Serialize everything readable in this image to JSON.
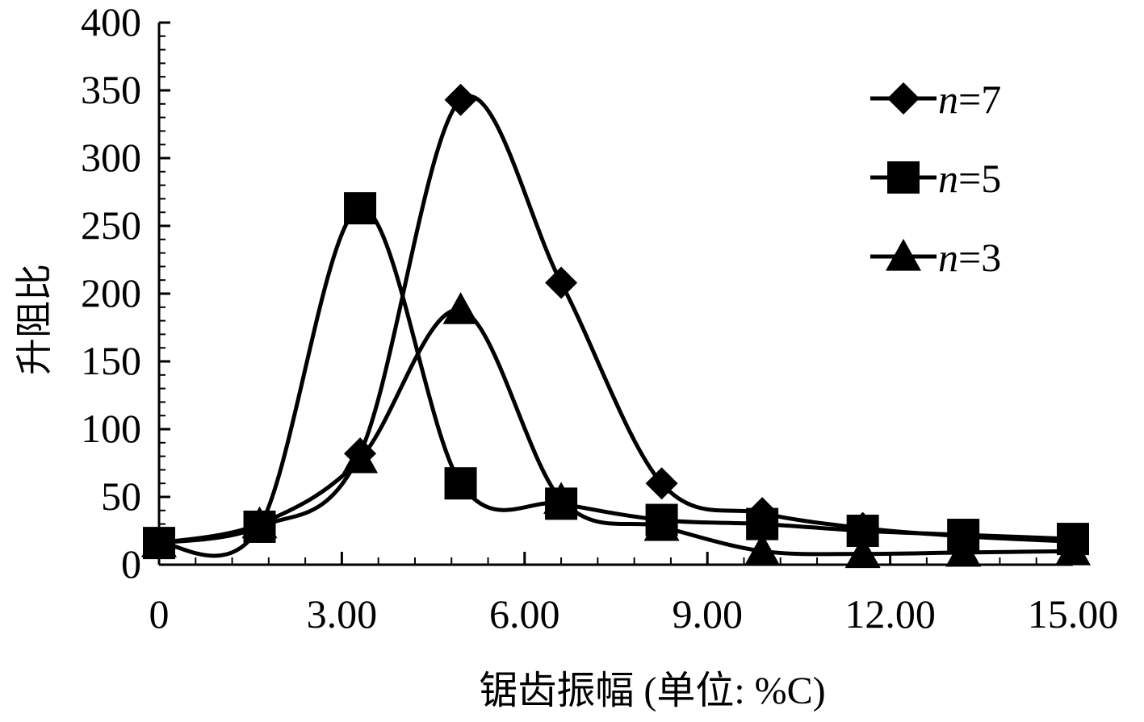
{
  "chart_data": {
    "type": "line",
    "title": "",
    "xlabel": "锯齿振幅 (单位: %C)",
    "ylabel": "升阻比",
    "xlim": [
      0,
      15
    ],
    "ylim": [
      0,
      400
    ],
    "x_ticks": [
      0,
      3,
      6,
      9,
      12,
      15
    ],
    "x_tick_labels": [
      "0",
      "3.00",
      "6.00",
      "9.00",
      "12.00",
      "15.00"
    ],
    "y_ticks": [
      0,
      50,
      100,
      150,
      200,
      250,
      300,
      350,
      400
    ],
    "y_tick_labels": [
      "0",
      "50",
      "100",
      "150",
      "200",
      "250",
      "300",
      "350",
      "400"
    ],
    "grid": false,
    "legend": "top-right",
    "series": [
      {
        "name": "n=7",
        "name_var": "n",
        "name_rest": "=7",
        "marker": "diamond",
        "x": [
          0,
          1.65,
          3.3,
          4.95,
          6.6,
          8.25,
          9.9,
          11.55,
          13.2,
          15.0
        ],
        "y": [
          16,
          28,
          82,
          343,
          208,
          60,
          38,
          27,
          21,
          17
        ]
      },
      {
        "name": "n=5",
        "name_var": "n",
        "name_rest": "=5",
        "marker": "square",
        "x": [
          0,
          1.65,
          3.3,
          4.95,
          6.6,
          8.25,
          9.9,
          11.55,
          13.2,
          15.0
        ],
        "y": [
          16,
          28,
          263,
          60,
          45,
          33,
          30,
          25,
          22,
          19
        ]
      },
      {
        "name": "n=3",
        "name_var": "n",
        "name_rest": "=3",
        "marker": "triangle",
        "x": [
          0,
          1.65,
          3.3,
          4.95,
          6.6,
          8.25,
          9.9,
          11.55,
          13.2,
          15.0
        ],
        "y": [
          16,
          30,
          78,
          188,
          48,
          28,
          10,
          8,
          9,
          10
        ]
      }
    ],
    "colors": {
      "line": "#000000",
      "marker": "#000000",
      "axis": "#000000",
      "text": "#000000"
    }
  }
}
